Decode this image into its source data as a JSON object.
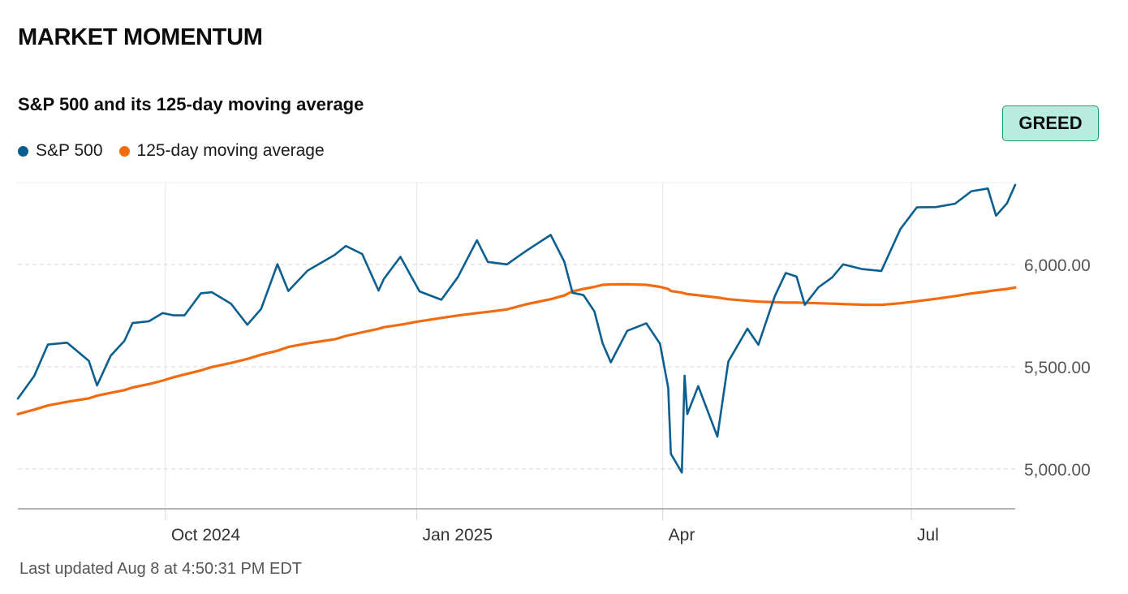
{
  "header": {
    "title": "MARKET MOMENTUM"
  },
  "badge": {
    "label": "GREED",
    "bg": "#b8ecdf",
    "border": "#1f9b6c"
  },
  "footer": {
    "updated": "Last updated Aug 8 at 4:50:31 PM EDT"
  },
  "chart_data": {
    "type": "line",
    "title": "S&P 500 and its 125-day moving average",
    "x": [
      "2024-08-08",
      "2024-08-14",
      "2024-08-19",
      "2024-08-26",
      "2024-09-03",
      "2024-09-06",
      "2024-09-11",
      "2024-09-16",
      "2024-09-19",
      "2024-09-25",
      "2024-09-30",
      "2024-10-04",
      "2024-10-08",
      "2024-10-14",
      "2024-10-18",
      "2024-10-25",
      "2024-10-31",
      "2024-11-05",
      "2024-11-11",
      "2024-11-15",
      "2024-11-22",
      "2024-12-02",
      "2024-12-06",
      "2024-12-12",
      "2024-12-18",
      "2024-12-20",
      "2024-12-26",
      "2025-01-02",
      "2025-01-10",
      "2025-01-16",
      "2025-01-23",
      "2025-01-27",
      "2025-02-03",
      "2025-02-10",
      "2025-02-19",
      "2025-02-24",
      "2025-02-27",
      "2025-03-03",
      "2025-03-07",
      "2025-03-10",
      "2025-03-13",
      "2025-03-19",
      "2025-03-26",
      "2025-03-31",
      "2025-04-03",
      "2025-04-04",
      "2025-04-08",
      "2025-04-09",
      "2025-04-10",
      "2025-04-14",
      "2025-04-21",
      "2025-04-25",
      "2025-05-02",
      "2025-05-06",
      "2025-05-12",
      "2025-05-16",
      "2025-05-20",
      "2025-05-23",
      "2025-05-28",
      "2025-06-02",
      "2025-06-06",
      "2025-06-13",
      "2025-06-20",
      "2025-06-27",
      "2025-07-03",
      "2025-07-10",
      "2025-07-17",
      "2025-07-23",
      "2025-07-29",
      "2025-08-01",
      "2025-08-05",
      "2025-08-08"
    ],
    "series": [
      {
        "name": "S&P 500",
        "color": "#0b5f8f",
        "values": [
          5344,
          5455,
          5608,
          5617,
          5528,
          5408,
          5554,
          5626,
          5713,
          5722,
          5762,
          5751,
          5751,
          5859,
          5864,
          5808,
          5705,
          5782,
          6001,
          5870,
          5969,
          6047,
          6090,
          6051,
          5872,
          5930,
          6037,
          5868,
          5827,
          5937,
          6118,
          6012,
          6000,
          6066,
          6144,
          6013,
          5861,
          5850,
          5770,
          5614,
          5521,
          5675,
          5712,
          5612,
          5397,
          5074,
          4982,
          5456,
          5268,
          5405,
          5158,
          5525,
          5686,
          5607,
          5844,
          5958,
          5940,
          5802,
          5888,
          5936,
          6000,
          5977,
          5968,
          6173,
          6279,
          6280,
          6297,
          6358,
          6371,
          6238,
          6299,
          6389
        ]
      },
      {
        "name": "125-day moving average",
        "color": "#f26b0f",
        "values": [
          5268,
          5290,
          5310,
          5328,
          5345,
          5358,
          5372,
          5385,
          5398,
          5415,
          5432,
          5448,
          5462,
          5482,
          5498,
          5518,
          5538,
          5558,
          5578,
          5596,
          5614,
          5634,
          5650,
          5668,
          5685,
          5693,
          5705,
          5722,
          5738,
          5750,
          5762,
          5768,
          5780,
          5805,
          5830,
          5848,
          5868,
          5880,
          5890,
          5900,
          5902,
          5903,
          5900,
          5890,
          5880,
          5870,
          5862,
          5858,
          5855,
          5849,
          5838,
          5830,
          5822,
          5818,
          5815,
          5813,
          5813,
          5812,
          5810,
          5808,
          5806,
          5803,
          5802,
          5810,
          5820,
          5832,
          5845,
          5858,
          5868,
          5874,
          5880,
          5887
        ]
      }
    ],
    "x_tick_labels": [
      "Oct 2024",
      "Jan 2025",
      "Apr",
      "Jul"
    ],
    "x_tick_dates": [
      "2024-10-01",
      "2025-01-01",
      "2025-04-01",
      "2025-07-01"
    ],
    "y_ticks": [
      5000,
      5500,
      6000
    ],
    "y_tick_labels": [
      "5,000.00",
      "5,500.00",
      "6,000.00"
    ],
    "ylim": [
      4805,
      6400
    ],
    "xlim": [
      "2024-08-08",
      "2025-08-08"
    ],
    "legend_position": "top-left",
    "y_axis_position": "right",
    "grid": true
  }
}
